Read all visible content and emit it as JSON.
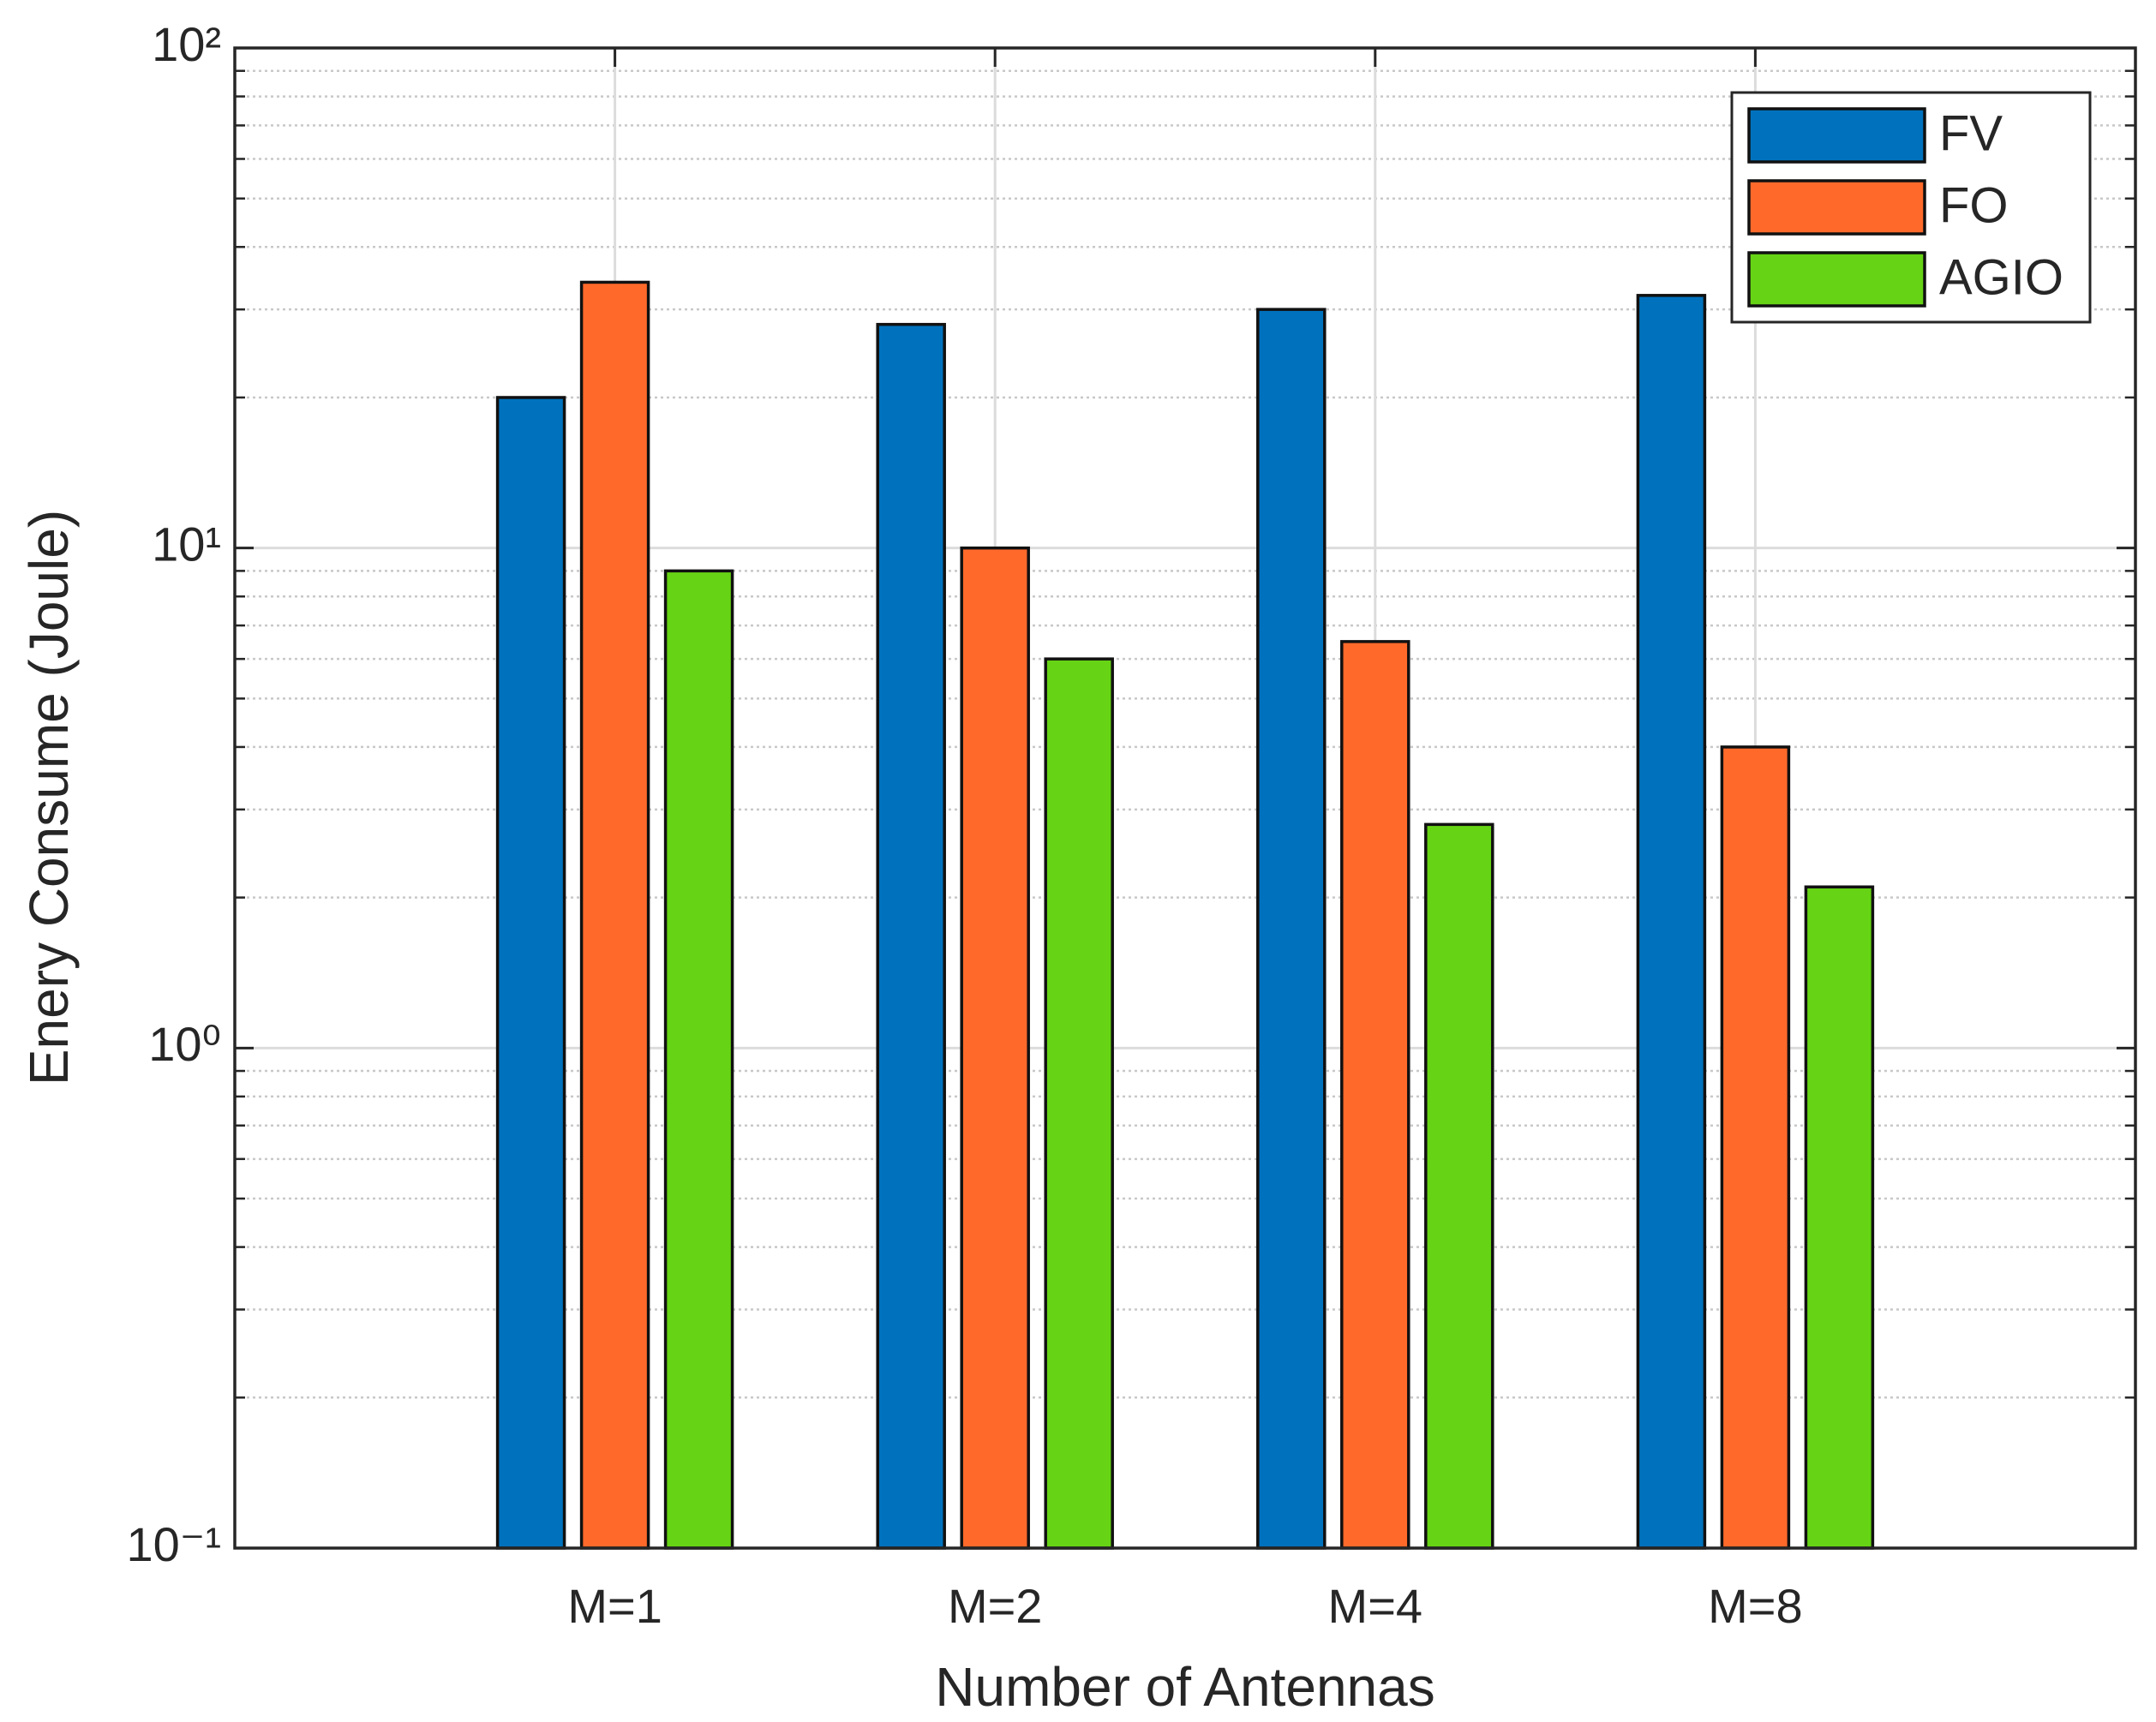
{
  "chart_data": {
    "type": "bar",
    "xlabel": "Number of Antennas",
    "ylabel": "Enery Consume (Joule)",
    "categories": [
      "M=1",
      "M=2",
      "M=4",
      "M=8"
    ],
    "series": [
      {
        "name": "FV",
        "color": "#0072bd",
        "values": [
          20,
          28,
          30,
          32
        ]
      },
      {
        "name": "FO",
        "color": "#ff6a2b",
        "values": [
          34,
          10,
          6.5,
          4
        ]
      },
      {
        "name": "AGIO",
        "color": "#66d414",
        "values": [
          9,
          6,
          2.8,
          2.1
        ]
      }
    ],
    "yscale": "log",
    "ylim": [
      0.1,
      100
    ],
    "yticks": [
      {
        "value": 0.1,
        "label": "10⁻¹"
      },
      {
        "value": 1,
        "label": "10⁰"
      },
      {
        "value": 10,
        "label": "10¹"
      },
      {
        "value": 100,
        "label": "10²"
      }
    ],
    "grid": true,
    "minor_grid": true,
    "legend": "northeast"
  }
}
